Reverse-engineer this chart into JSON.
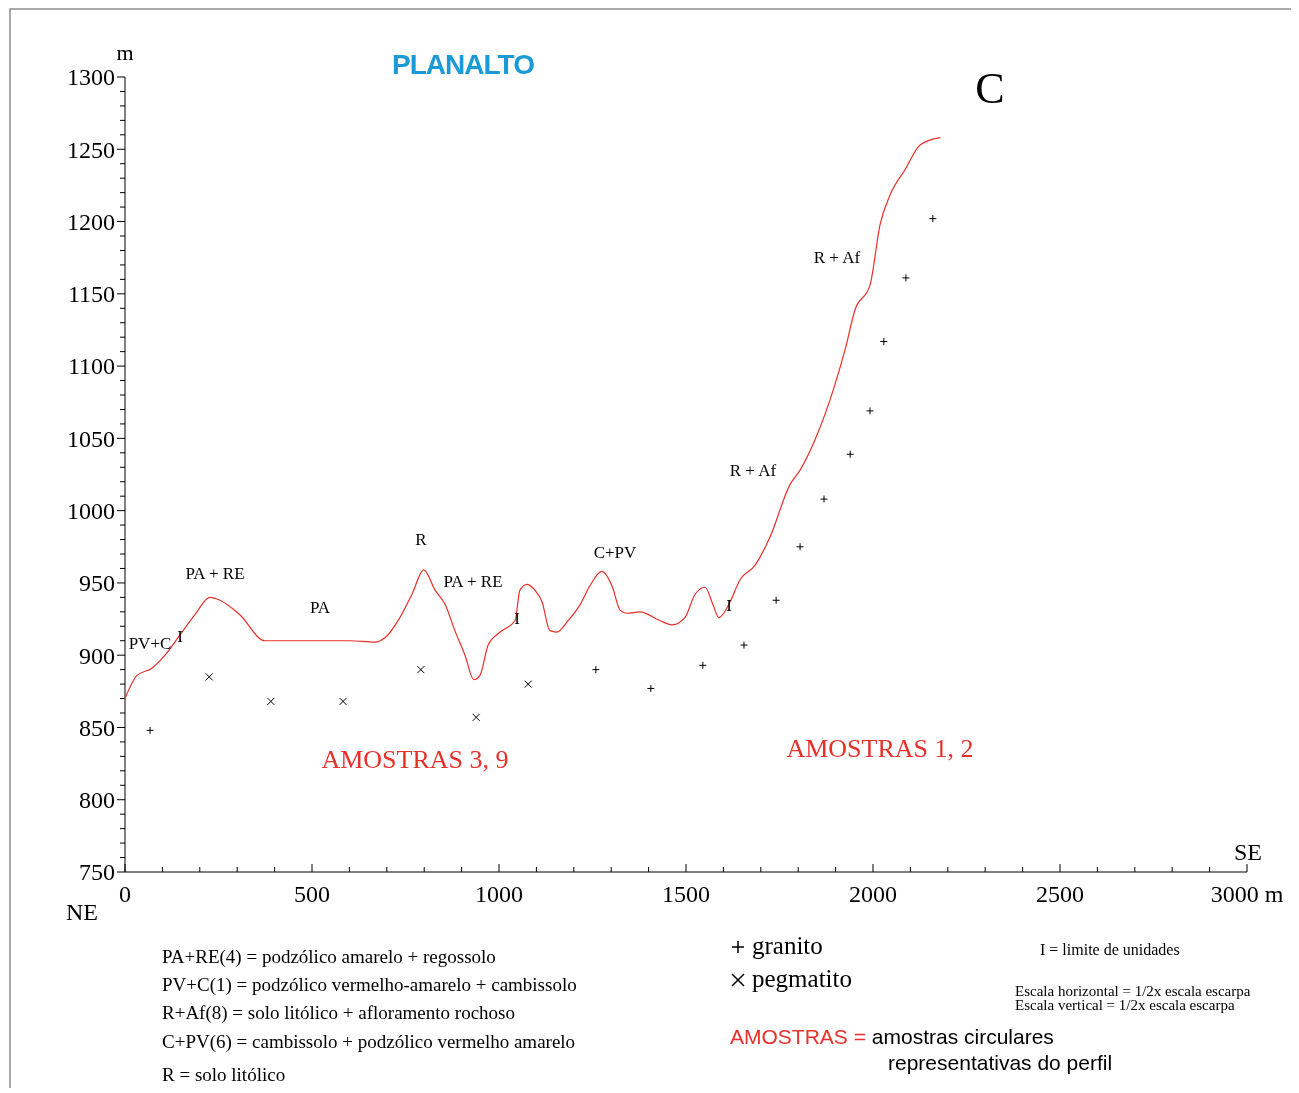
{
  "chart_data": {
    "type": "line",
    "title": "PLANALTO",
    "ylabel": "m",
    "xlim": [
      0,
      3000
    ],
    "ylim": [
      750,
      1300
    ],
    "xticks": [
      0,
      {
        "value": 100,
        "label": null
      },
      {
        "value": 200,
        "label": null
      },
      {
        "value": 300,
        "label": null
      },
      {
        "value": 400,
        "label": null
      },
      500,
      {
        "value": 600,
        "label": null
      },
      {
        "value": 700,
        "label": null
      },
      {
        "value": 800,
        "label": null
      },
      {
        "value": 900,
        "label": null
      },
      1000,
      {
        "value": 1100,
        "label": null
      },
      {
        "value": 1200,
        "label": null
      },
      {
        "value": 1300,
        "label": null
      },
      {
        "value": 1400,
        "label": null
      },
      1500,
      {
        "value": 1600,
        "label": null
      },
      {
        "value": 1700,
        "label": null
      },
      {
        "value": 1800,
        "label": null
      },
      {
        "value": 1900,
        "label": null
      },
      2000,
      {
        "value": 2100,
        "label": null
      },
      {
        "value": 2200,
        "label": null
      },
      {
        "value": 2300,
        "label": null
      },
      {
        "value": 2400,
        "label": null
      },
      2500,
      {
        "value": 2600,
        "label": null
      },
      {
        "value": 2700,
        "label": null
      },
      {
        "value": 2800,
        "label": null
      },
      {
        "value": 2900,
        "label": null
      },
      {
        "value": 3000,
        "label": "3000 m"
      }
    ],
    "yticks": [
      750,
      {
        "value": 760,
        "label": null
      },
      {
        "value": 770,
        "label": null
      },
      {
        "value": 780,
        "label": null
      },
      {
        "value": 790,
        "label": null
      },
      800,
      {
        "value": 810,
        "label": null
      },
      {
        "value": 820,
        "label": null
      },
      {
        "value": 830,
        "label": null
      },
      {
        "value": 840,
        "label": null
      },
      850,
      {
        "value": 860,
        "label": null
      },
      {
        "value": 870,
        "label": null
      },
      {
        "value": 880,
        "label": null
      },
      {
        "value": 890,
        "label": null
      },
      900,
      {
        "value": 910,
        "label": null
      },
      {
        "value": 920,
        "label": null
      },
      {
        "value": 930,
        "label": null
      },
      {
        "value": 940,
        "label": null
      },
      950,
      {
        "value": 960,
        "label": null
      },
      {
        "value": 970,
        "label": null
      },
      {
        "value": 980,
        "label": null
      },
      {
        "value": 990,
        "label": null
      },
      1000,
      {
        "value": 1010,
        "label": null
      },
      {
        "value": 1020,
        "label": null
      },
      {
        "value": 1030,
        "label": null
      },
      {
        "value": 1040,
        "label": null
      },
      1050,
      {
        "value": 1060,
        "label": null
      },
      {
        "value": 1070,
        "label": null
      },
      {
        "value": 1080,
        "label": null
      },
      {
        "value": 1090,
        "label": null
      },
      1100,
      {
        "value": 1110,
        "label": null
      },
      {
        "value": 1120,
        "label": null
      },
      {
        "value": 1130,
        "label": null
      },
      {
        "value": 1140,
        "label": null
      },
      1150,
      {
        "value": 1160,
        "label": null
      },
      {
        "value": 1170,
        "label": null
      },
      {
        "value": 1180,
        "label": null
      },
      {
        "value": 1190,
        "label": null
      },
      1200,
      {
        "value": 1210,
        "label": null
      },
      {
        "value": 1220,
        "label": null
      },
      {
        "value": 1230,
        "label": null
      },
      {
        "value": 1240,
        "label": null
      },
      1250,
      {
        "value": 1260,
        "label": null
      },
      {
        "value": 1270,
        "label": null
      },
      {
        "value": 1280,
        "label": null
      },
      {
        "value": 1290,
        "label": null
      },
      1300
    ],
    "grid": false,
    "legend": "bottom",
    "series": [
      {
        "color": "#e8302a",
        "marker": "none",
        "line_style": "solid",
        "x": [
          0,
          32,
          72,
          107,
          147,
          187,
          227,
          254,
          307,
          374,
          401,
          441,
          602,
          668,
          695,
          735,
          767,
          799,
          829,
          856,
          882,
          909,
          933,
          949,
          971,
          1003,
          1043,
          1056,
          1075,
          1096,
          1115,
          1136,
          1155,
          1185,
          1217,
          1243,
          1275,
          1302,
          1324,
          1342,
          1377,
          1430,
          1463,
          1497,
          1524,
          1551,
          1572,
          1588,
          1618,
          1644,
          1684,
          1725,
          1778,
          1805,
          1845,
          1898,
          1925,
          1952,
          1992,
          2019,
          2045,
          2086,
          2126,
          2179
        ],
        "values": [
          870,
          886,
          891,
          900,
          914,
          928,
          940,
          938,
          928,
          910,
          910,
          910,
          910,
          909,
          912,
          926,
          942,
          959,
          945,
          935,
          917,
          900,
          883,
          886,
          907,
          916,
          924,
          945,
          949,
          945,
          937,
          917,
          916,
          924,
          935,
          948,
          958,
          948,
          931,
          929,
          930,
          924,
          921,
          926,
          942,
          947,
          935,
          926,
          937,
          952,
          962,
          982,
          1018,
          1028,
          1049,
          1087,
          1111,
          1139,
          1156,
          1198,
          1218,
          1236,
          1253,
          1258
        ]
      },
      {
        "type": "scatter",
        "name": "granito",
        "color": "#000000",
        "marker": "cross",
        "x": [
          67,
          1259,
          1406,
          1545,
          1655,
          1741,
          1805,
          1869,
          1939,
          1992,
          2029,
          2088,
          2160
        ],
        "values": [
          848,
          890,
          877,
          893,
          907,
          938,
          975,
          1008,
          1039,
          1069,
          1117,
          1161,
          1202
        ]
      },
      {
        "type": "scatter",
        "name": "pegmatito",
        "color": "#000000",
        "marker": "x",
        "x": [
          225,
          390,
          583,
          791,
          939,
          1078
        ],
        "values": [
          885,
          868,
          868,
          890,
          857,
          880
        ]
      }
    ],
    "annotations": [
      "PV+C",
      "I",
      "PA + RE",
      "PA",
      "R",
      "PA + RE",
      "I",
      "C+PV",
      "I",
      "R + Af",
      "R + Af",
      "AMOSTRAS 3, 9",
      "AMOSTRAS 1, 2",
      "C",
      "NE",
      "SE",
      "PA+RE(4) = podzólico amarelo + regossolo",
      "PV+C(1) = podzólico vermelho-amarelo + cambissolo",
      "R+Af(8) = solo litólico + afloramento rochoso",
      "C+PV(6) = cambissolo + podzólico vermelho amarelo",
      "R = solo litólico",
      "I = limite de unidades",
      "Escala horizontal = 1/2x escala escarpa",
      "Escala vertical = 1/2x escala escarpa",
      "AMOSTRAS = amostras circulares representativas do perfil"
    ]
  }
}
